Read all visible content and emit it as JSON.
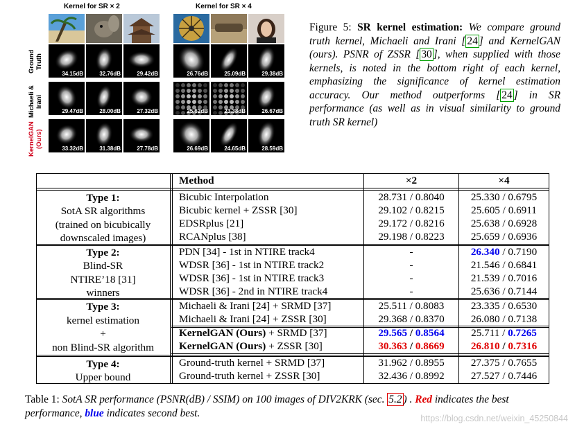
{
  "figure": {
    "headers": [
      "Kernel for SR × 2",
      "Kernel for SR × 4"
    ],
    "row_labels": [
      "Ground Truth",
      "Michaeli & Irani",
      "KernelGAN (Ours)"
    ],
    "psnr": [
      [
        "34.15dB",
        "32.76dB",
        "29.42dB",
        "26.76dB",
        "25.09dB",
        "29.38dB"
      ],
      [
        "29.47dB",
        "28.00dB",
        "27.32dB",
        "25.62dB",
        "23.38dB",
        "26.67dB"
      ],
      [
        "33.32dB",
        "31.38dB",
        "27.78dB",
        "26.69dB",
        "24.65dB",
        "28.59dB"
      ]
    ],
    "caption": {
      "label": "Figure 5:",
      "title": "SR kernel estimation:",
      "p1": "We compare ground truth kernel, Michaeli and Irani ",
      "c1": "24",
      "p2": " and KernelGAN (ours). PSNR of ZSSR ",
      "c2": "30",
      "p3": ", when supplied with those kernels, is noted in the bottom right of each kernel, emphasizing the significance of kernel estimation accuracy. Our method outperforms ",
      "c3": "24",
      "p4": " in SR performance (as well as in visual similarity to ground truth SR kernel)"
    }
  },
  "table": {
    "headers": {
      "method": "Method",
      "x2": "×2",
      "x4": "×4"
    },
    "groups": [
      {
        "desc": [
          "Type 1:",
          "SotA SR algorithms",
          "(trained on bicubically",
          "downscaled images)"
        ]
      },
      {
        "desc": [
          "Type 2:",
          "Blind-SR",
          "NTIRE’18 [31]",
          "winners"
        ]
      },
      {
        "desc": [
          "Type 3:",
          "kernel estimation",
          "+",
          "non Blind-SR algorithm"
        ]
      },
      {
        "desc": [
          "Type 4:",
          "Upper bound"
        ]
      }
    ],
    "rows": [
      {
        "method": "Bicubic Interpolation",
        "x2": "28.731 / 0.8040",
        "x4": "25.330 / 0.6795"
      },
      {
        "method": "Bicubic kernel + ZSSR [30]",
        "x2": "29.102 / 0.8215",
        "x4": "25.605 / 0.6911"
      },
      {
        "method": "EDSRplus [21]",
        "x2": "29.172 / 0.8216",
        "x4": "25.638 / 0.6928"
      },
      {
        "method": "RCANplus [38]",
        "x2": "29.198 / 0.8223",
        "x4": "25.659 / 0.6936"
      },
      {
        "method": "PDN [34] - 1st in NTIRE track4",
        "x2": "-",
        "x4_a": "26.340",
        "x4_b": " / 0.7190"
      },
      {
        "method": "WDSR [36] - 1st in NTIRE track2",
        "x2": "-",
        "x4": "21.546 / 0.6841"
      },
      {
        "method": "WDSR [36] - 1st in NTIRE track3",
        "x2": "-",
        "x4": "21.539 / 0.7016"
      },
      {
        "method": "WDSR [36] - 2nd in NTIRE track4",
        "x2": "-",
        "x4": "25.636 / 0.7144"
      },
      {
        "method": "Michaeli & Irani [24] + SRMD [37]",
        "x2": "25.511 / 0.8083",
        "x4": "23.335 / 0.6530"
      },
      {
        "method": "Michaeli & Irani [24] + ZSSR [30]",
        "x2": "29.368 / 0.8370",
        "x4": "26.080 / 0.7138"
      },
      {
        "method_b": "KernelGAN (Ours)",
        "method_r": " + SRMD [37]",
        "x2_a": "29.565",
        "x2_sep": " / ",
        "x2_b": "0.8564",
        "x4_a": "25.711 / ",
        "x4_b": "0.7265"
      },
      {
        "method_b": "KernelGAN (Ours)",
        "method_r": " + ZSSR [30]",
        "x2_a": "30.363",
        "x2_sep": " / ",
        "x2_b": "0.8669",
        "x4_a": "26.810",
        "x4_sep": " / ",
        "x4_b": "0.7316"
      },
      {
        "method": "Ground-truth kernel + SRMD [37]",
        "x2": "31.962 / 0.8955",
        "x4": "27.375 / 0.7655"
      },
      {
        "method": "Ground-truth kernel + ZSSR [30]",
        "x2": "32.436 / 0.8992",
        "x4": "27.527 / 0.7446"
      }
    ]
  },
  "table_caption": {
    "label": "Table 1:",
    "t1": "SotA SR performance (PSNR(dB) / SSIM) on 100 images of DIV2KRK (sec. ",
    "sec": "5.2",
    "t2": ") . ",
    "red": "Red",
    "t3": " indicates the best performance, ",
    "blue": "blue",
    "t4": " indicates second best."
  },
  "watermark": "https://blog.csdn.net/weixin_45250844"
}
